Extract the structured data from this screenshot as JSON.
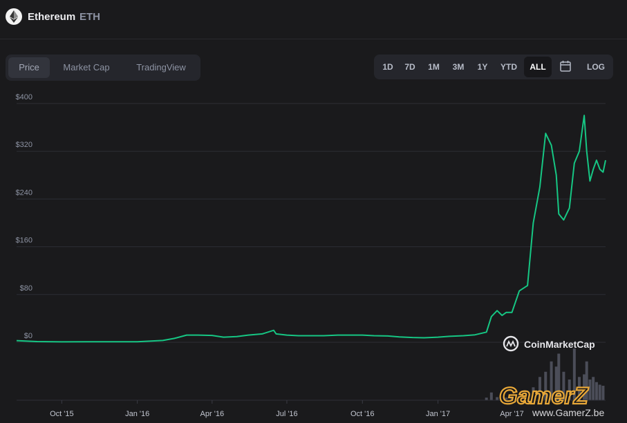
{
  "coin": {
    "name": "Ethereum",
    "symbol": "ETH",
    "icon": "ethereum-icon"
  },
  "tabs": [
    {
      "label": "Price",
      "active": true
    },
    {
      "label": "Market Cap",
      "active": false
    },
    {
      "label": "TradingView",
      "active": false
    }
  ],
  "ranges": [
    {
      "label": "1D",
      "active": false
    },
    {
      "label": "7D",
      "active": false
    },
    {
      "label": "1M",
      "active": false
    },
    {
      "label": "3M",
      "active": false
    },
    {
      "label": "1Y",
      "active": false
    },
    {
      "label": "YTD",
      "active": false
    },
    {
      "label": "ALL",
      "active": true
    },
    {
      "label": "",
      "icon": "calendar-icon",
      "active": false
    },
    {
      "label": "LOG",
      "active": false
    }
  ],
  "branding": "CoinMarketCap",
  "watermark": {
    "title": "GamerZ",
    "url": "www.GamerZ.be"
  },
  "colors": {
    "line": "#16c784",
    "volume": "#4b4d58",
    "background": "#1a1a1c",
    "panel": "#25262c",
    "watermark": "#e8a838"
  },
  "chart_data": {
    "type": "line",
    "ylim": [
      0,
      400
    ],
    "yticks": [
      "$400",
      "$320",
      "$240",
      "$160",
      "$80",
      "$0"
    ],
    "ytick_values": [
      400,
      320,
      240,
      160,
      80,
      0
    ],
    "xticks": [
      "Oct '15",
      "Jan '16",
      "Apr '16",
      "Jul '16",
      "Oct '16",
      "Jan '17",
      "Apr '17"
    ],
    "xtick_dates": [
      "2015-10-01",
      "2016-01-01",
      "2016-04-01",
      "2016-07-01",
      "2016-10-01",
      "2017-01-01",
      "2017-04-01"
    ],
    "xlim": [
      "2015-08-07",
      "2017-07-24"
    ],
    "grid": true,
    "series": [
      {
        "x": [
          "2015-08-07",
          "2015-09-01",
          "2015-10-01",
          "2015-11-01",
          "2015-12-01",
          "2016-01-01",
          "2016-02-01",
          "2016-02-15",
          "2016-03-01",
          "2016-03-15",
          "2016-04-01",
          "2016-04-15",
          "2016-05-01",
          "2016-05-15",
          "2016-06-01",
          "2016-06-15",
          "2016-06-18",
          "2016-07-01",
          "2016-07-15",
          "2016-08-01",
          "2016-08-15",
          "2016-09-01",
          "2016-09-15",
          "2016-10-01",
          "2016-10-15",
          "2016-11-01",
          "2016-11-15",
          "2016-12-01",
          "2016-12-15",
          "2017-01-01",
          "2017-01-15",
          "2017-02-01",
          "2017-02-15",
          "2017-03-01",
          "2017-03-07",
          "2017-03-14",
          "2017-03-20",
          "2017-03-25",
          "2017-04-01",
          "2017-04-10",
          "2017-04-20",
          "2017-04-27",
          "2017-05-05",
          "2017-05-12",
          "2017-05-19",
          "2017-05-25",
          "2017-05-28",
          "2017-06-03",
          "2017-06-10",
          "2017-06-16",
          "2017-06-22",
          "2017-06-28",
          "2017-07-01",
          "2017-07-05",
          "2017-07-09",
          "2017-07-13",
          "2017-07-17",
          "2017-07-21",
          "2017-07-24"
        ],
        "values": [
          2.8,
          1.2,
          0.7,
          0.9,
          0.9,
          0.9,
          3.0,
          6.5,
          12.0,
          12.0,
          11.5,
          8.5,
          9.5,
          12.0,
          14.0,
          20.0,
          14.0,
          12.0,
          11.0,
          11.0,
          11.0,
          12.0,
          12.0,
          12.0,
          11.0,
          10.5,
          9.0,
          8.0,
          7.5,
          8.5,
          10.0,
          11.0,
          12.5,
          17.0,
          43.0,
          53.0,
          45.0,
          50.0,
          50.0,
          86.0,
          95.0,
          200.0,
          260.0,
          350.0,
          330.0,
          280.0,
          215.0,
          205.0,
          225.0,
          300.0,
          320.0,
          380.0,
          320.0,
          270.0,
          290.0,
          305.0,
          290.0,
          285.0,
          305.0
        ]
      }
    ],
    "volume": {
      "x": [
        "2017-03-01",
        "2017-03-07",
        "2017-03-14",
        "2017-03-20",
        "2017-03-25",
        "2017-04-01",
        "2017-04-10",
        "2017-04-20",
        "2017-04-27",
        "2017-05-05",
        "2017-05-12",
        "2017-05-19",
        "2017-05-25",
        "2017-05-28",
        "2017-06-03",
        "2017-06-10",
        "2017-06-16",
        "2017-06-22",
        "2017-06-28",
        "2017-07-01",
        "2017-07-05",
        "2017-07-09",
        "2017-07-13",
        "2017-07-17",
        "2017-07-21"
      ],
      "values": [
        0.05,
        0.15,
        0.06,
        0.08,
        0.05,
        0.06,
        0.08,
        0.12,
        0.25,
        0.45,
        0.55,
        0.75,
        0.65,
        0.9,
        0.55,
        0.4,
        1.0,
        0.45,
        0.5,
        0.75,
        0.4,
        0.45,
        0.35,
        0.3,
        0.28
      ]
    }
  }
}
